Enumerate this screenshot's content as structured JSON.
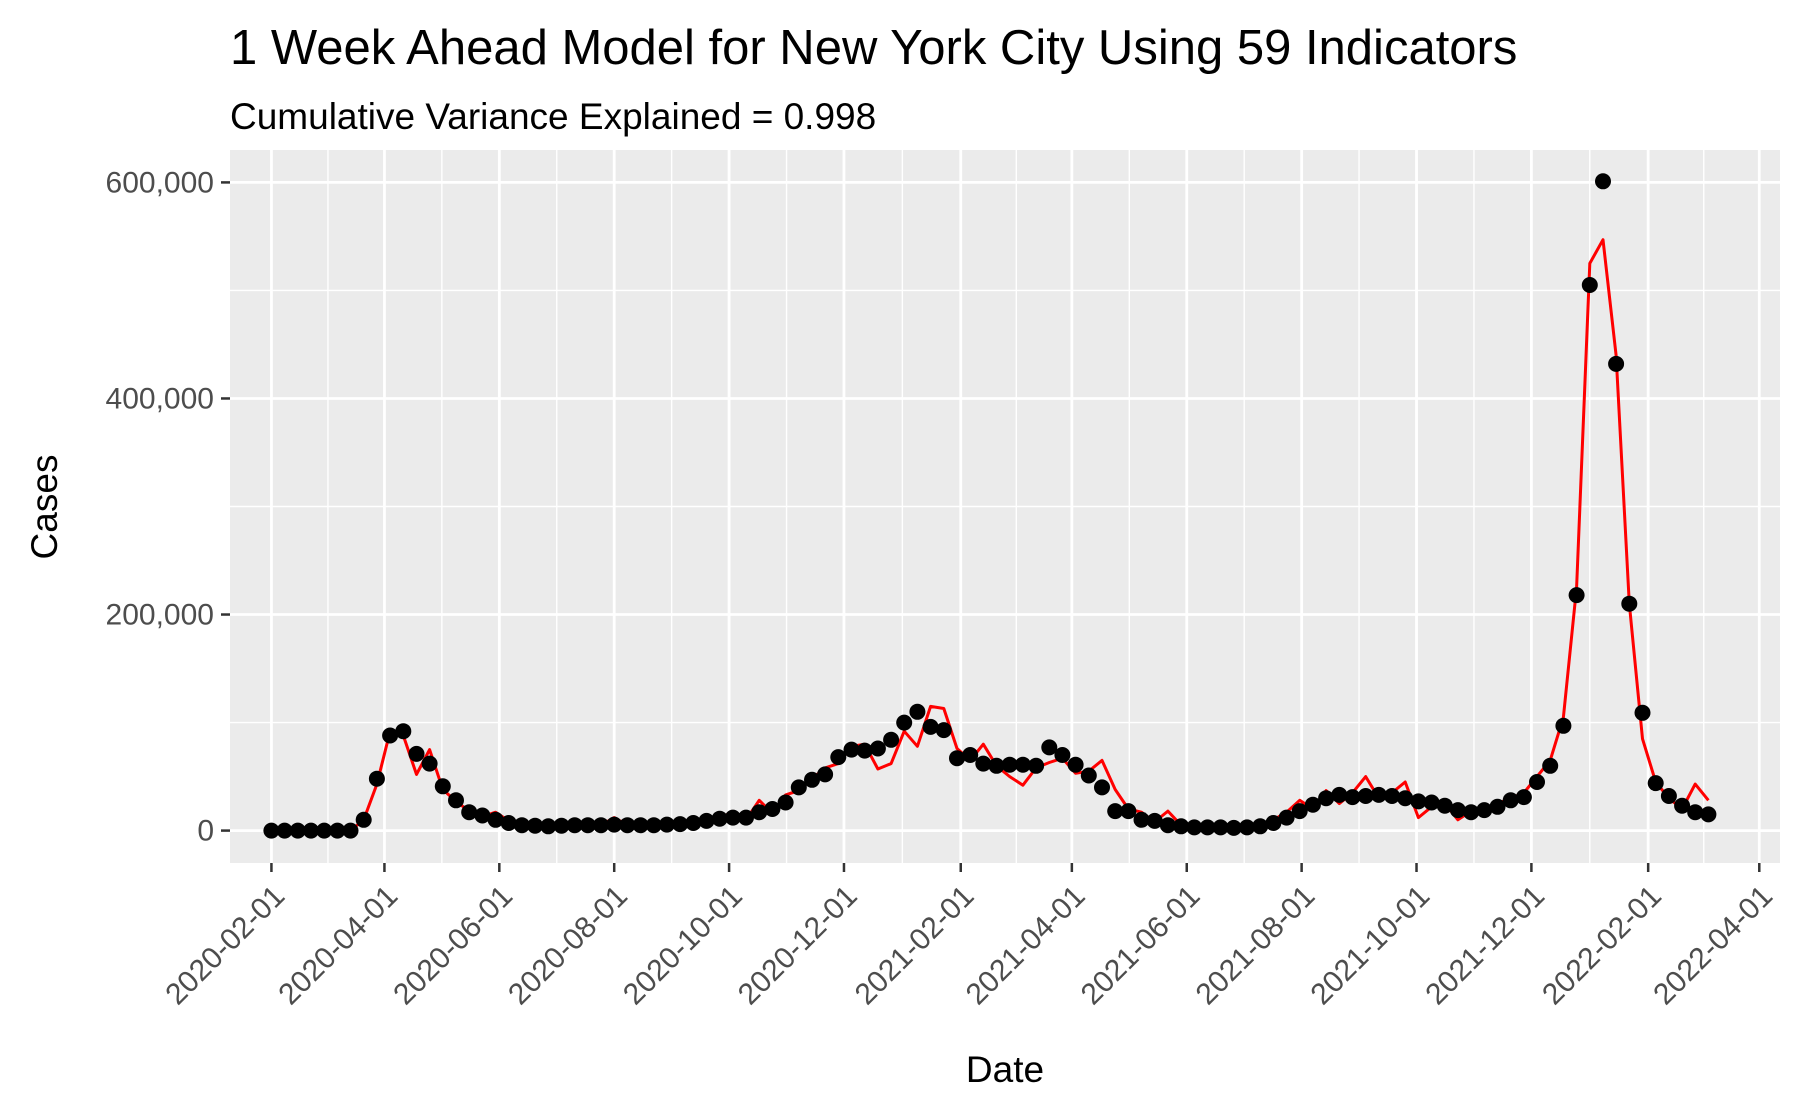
{
  "chart_data": {
    "type": "line",
    "title": "1 Week Ahead Model for New York City Using 59 Indicators",
    "subtitle": "Cumulative Variance Explained = 0.998",
    "xlabel": "Date",
    "ylabel": "Cases",
    "x_axis": {
      "type": "date",
      "range": [
        "2020-01-10",
        "2022-04-12"
      ],
      "ticks": [
        "2020-02-01",
        "2020-04-01",
        "2020-06-01",
        "2020-08-01",
        "2020-10-01",
        "2020-12-01",
        "2021-02-01",
        "2021-04-01",
        "2021-06-01",
        "2021-08-01",
        "2021-10-01",
        "2021-12-01",
        "2022-02-01",
        "2022-04-01"
      ]
    },
    "y_axis": {
      "range": [
        -30000,
        630000
      ],
      "ticks": [
        0,
        200000,
        400000,
        600000
      ],
      "tick_labels": [
        "0",
        "200,000",
        "400,000",
        "600,000"
      ]
    },
    "grid": true,
    "colors": {
      "panel": "#ebebeb",
      "grid": "#ffffff",
      "predicted": "#ff0000",
      "observed": "#000000"
    },
    "series": [
      {
        "kind": "line",
        "values": [
          [
            "2020-02-01",
            0
          ],
          [
            "2020-02-08",
            0
          ],
          [
            "2020-02-15",
            0
          ],
          [
            "2020-02-22",
            0
          ],
          [
            "2020-02-29",
            0
          ],
          [
            "2020-03-07",
            0
          ],
          [
            "2020-03-14",
            0
          ],
          [
            "2020-03-21",
            10000
          ],
          [
            "2020-03-28",
            43000
          ],
          [
            "2020-04-04",
            92000
          ],
          [
            "2020-04-11",
            88000
          ],
          [
            "2020-04-18",
            52000
          ],
          [
            "2020-04-25",
            75000
          ],
          [
            "2020-05-02",
            38000
          ],
          [
            "2020-05-09",
            27000
          ],
          [
            "2020-05-16",
            18000
          ],
          [
            "2020-05-23",
            13000
          ],
          [
            "2020-05-30",
            17000
          ],
          [
            "2020-06-06",
            9000
          ],
          [
            "2020-06-13",
            6000
          ],
          [
            "2020-06-20",
            5000
          ],
          [
            "2020-06-27",
            5000
          ],
          [
            "2020-07-04",
            5500
          ],
          [
            "2020-07-11",
            6000
          ],
          [
            "2020-07-18",
            5500
          ],
          [
            "2020-07-25",
            5000
          ],
          [
            "2020-08-01",
            12000
          ],
          [
            "2020-08-08",
            5000
          ],
          [
            "2020-08-15",
            6000
          ],
          [
            "2020-08-22",
            5000
          ],
          [
            "2020-08-29",
            6000
          ],
          [
            "2020-09-05",
            7000
          ],
          [
            "2020-09-12",
            7000
          ],
          [
            "2020-09-19",
            10000
          ],
          [
            "2020-09-26",
            12000
          ],
          [
            "2020-10-03",
            17000
          ],
          [
            "2020-10-10",
            10000
          ],
          [
            "2020-10-17",
            28000
          ],
          [
            "2020-10-24",
            16000
          ],
          [
            "2020-10-31",
            33000
          ],
          [
            "2020-11-07",
            37000
          ],
          [
            "2020-11-14",
            48000
          ],
          [
            "2020-11-21",
            58000
          ],
          [
            "2020-11-28",
            62000
          ],
          [
            "2020-12-05",
            78000
          ],
          [
            "2020-12-12",
            80000
          ],
          [
            "2020-12-19",
            57000
          ],
          [
            "2020-12-26",
            62000
          ],
          [
            "2021-01-02",
            92000
          ],
          [
            "2021-01-09",
            78000
          ],
          [
            "2021-01-16",
            115000
          ],
          [
            "2021-01-23",
            113000
          ],
          [
            "2021-01-30",
            76000
          ],
          [
            "2021-02-06",
            65000
          ],
          [
            "2021-02-13",
            80000
          ],
          [
            "2021-02-20",
            60000
          ],
          [
            "2021-02-27",
            50000
          ],
          [
            "2021-03-06",
            42000
          ],
          [
            "2021-03-13",
            58000
          ],
          [
            "2021-03-20",
            63000
          ],
          [
            "2021-03-27",
            67000
          ],
          [
            "2021-04-03",
            53000
          ],
          [
            "2021-04-10",
            55000
          ],
          [
            "2021-04-17",
            65000
          ],
          [
            "2021-04-24",
            38000
          ],
          [
            "2021-05-01",
            20000
          ],
          [
            "2021-05-08",
            17000
          ],
          [
            "2021-05-15",
            8000
          ],
          [
            "2021-05-22",
            18000
          ],
          [
            "2021-05-29",
            5000
          ],
          [
            "2021-06-05",
            3000
          ],
          [
            "2021-06-12",
            2000
          ],
          [
            "2021-06-19",
            4000
          ],
          [
            "2021-06-26",
            3000
          ],
          [
            "2021-07-03",
            2000
          ],
          [
            "2021-07-10",
            4000
          ],
          [
            "2021-07-17",
            10000
          ],
          [
            "2021-07-24",
            17000
          ],
          [
            "2021-07-31",
            28000
          ],
          [
            "2021-08-07",
            20000
          ],
          [
            "2021-08-14",
            37000
          ],
          [
            "2021-08-21",
            25000
          ],
          [
            "2021-08-28",
            35000
          ],
          [
            "2021-09-04",
            50000
          ],
          [
            "2021-09-11",
            30000
          ],
          [
            "2021-09-18",
            35000
          ],
          [
            "2021-09-25",
            45000
          ],
          [
            "2021-10-02",
            12000
          ],
          [
            "2021-10-09",
            22000
          ],
          [
            "2021-10-16",
            25000
          ],
          [
            "2021-10-23",
            10000
          ],
          [
            "2021-10-30",
            18000
          ],
          [
            "2021-11-06",
            20000
          ],
          [
            "2021-11-13",
            25000
          ],
          [
            "2021-11-20",
            30000
          ],
          [
            "2021-11-27",
            35000
          ],
          [
            "2021-12-04",
            50000
          ],
          [
            "2021-12-11",
            65000
          ],
          [
            "2021-12-18",
            105000
          ],
          [
            "2021-12-25",
            225000
          ],
          [
            "2022-01-01",
            525000
          ],
          [
            "2022-01-08",
            547000
          ],
          [
            "2022-01-15",
            440000
          ],
          [
            "2022-01-22",
            210000
          ],
          [
            "2022-01-29",
            85000
          ],
          [
            "2022-02-05",
            45000
          ],
          [
            "2022-02-12",
            30000
          ],
          [
            "2022-02-19",
            20000
          ],
          [
            "2022-02-26",
            43000
          ],
          [
            "2022-03-05",
            28000
          ]
        ]
      },
      {
        "kind": "points",
        "values": [
          [
            "2020-02-01",
            0
          ],
          [
            "2020-02-08",
            0
          ],
          [
            "2020-02-15",
            0
          ],
          [
            "2020-02-22",
            0
          ],
          [
            "2020-02-29",
            0
          ],
          [
            "2020-03-07",
            0
          ],
          [
            "2020-03-14",
            0
          ],
          [
            "2020-03-21",
            10000
          ],
          [
            "2020-03-28",
            48000
          ],
          [
            "2020-04-04",
            88000
          ],
          [
            "2020-04-11",
            92000
          ],
          [
            "2020-04-18",
            71000
          ],
          [
            "2020-04-25",
            62000
          ],
          [
            "2020-05-02",
            41000
          ],
          [
            "2020-05-09",
            28000
          ],
          [
            "2020-05-16",
            17000
          ],
          [
            "2020-05-23",
            14000
          ],
          [
            "2020-05-30",
            10000
          ],
          [
            "2020-06-06",
            7000
          ],
          [
            "2020-06-13",
            5000
          ],
          [
            "2020-06-20",
            4500
          ],
          [
            "2020-06-27",
            4000
          ],
          [
            "2020-07-04",
            4500
          ],
          [
            "2020-07-11",
            5000
          ],
          [
            "2020-07-18",
            5000
          ],
          [
            "2020-07-25",
            5000
          ],
          [
            "2020-08-01",
            5500
          ],
          [
            "2020-08-08",
            5000
          ],
          [
            "2020-08-15",
            5000
          ],
          [
            "2020-08-22",
            5000
          ],
          [
            "2020-08-29",
            5500
          ],
          [
            "2020-09-05",
            6000
          ],
          [
            "2020-09-12",
            7000
          ],
          [
            "2020-09-19",
            9000
          ],
          [
            "2020-09-26",
            11000
          ],
          [
            "2020-10-03",
            12000
          ],
          [
            "2020-10-10",
            12000
          ],
          [
            "2020-10-17",
            17000
          ],
          [
            "2020-10-24",
            20000
          ],
          [
            "2020-10-31",
            26000
          ],
          [
            "2020-11-07",
            40000
          ],
          [
            "2020-11-14",
            47000
          ],
          [
            "2020-11-21",
            52000
          ],
          [
            "2020-11-28",
            68000
          ],
          [
            "2020-12-05",
            75000
          ],
          [
            "2020-12-12",
            74000
          ],
          [
            "2020-12-19",
            76000
          ],
          [
            "2020-12-26",
            84000
          ],
          [
            "2021-01-02",
            100000
          ],
          [
            "2021-01-09",
            110000
          ],
          [
            "2021-01-16",
            96000
          ],
          [
            "2021-01-23",
            93000
          ],
          [
            "2021-01-30",
            67000
          ],
          [
            "2021-02-06",
            70000
          ],
          [
            "2021-02-13",
            62000
          ],
          [
            "2021-02-20",
            60000
          ],
          [
            "2021-02-27",
            61000
          ],
          [
            "2021-03-06",
            61000
          ],
          [
            "2021-03-13",
            60000
          ],
          [
            "2021-03-20",
            77000
          ],
          [
            "2021-03-27",
            70000
          ],
          [
            "2021-04-03",
            61000
          ],
          [
            "2021-04-10",
            51000
          ],
          [
            "2021-04-17",
            40000
          ],
          [
            "2021-04-24",
            18000
          ],
          [
            "2021-05-01",
            18000
          ],
          [
            "2021-05-08",
            10000
          ],
          [
            "2021-05-15",
            9000
          ],
          [
            "2021-05-22",
            5000
          ],
          [
            "2021-05-29",
            4000
          ],
          [
            "2021-06-05",
            3000
          ],
          [
            "2021-06-12",
            3000
          ],
          [
            "2021-06-19",
            3000
          ],
          [
            "2021-06-26",
            2500
          ],
          [
            "2021-07-03",
            3000
          ],
          [
            "2021-07-10",
            4000
          ],
          [
            "2021-07-17",
            7000
          ],
          [
            "2021-07-24",
            12000
          ],
          [
            "2021-07-31",
            18000
          ],
          [
            "2021-08-07",
            24000
          ],
          [
            "2021-08-14",
            30000
          ],
          [
            "2021-08-21",
            33000
          ],
          [
            "2021-08-28",
            31000
          ],
          [
            "2021-09-04",
            32000
          ],
          [
            "2021-09-11",
            33000
          ],
          [
            "2021-09-18",
            32000
          ],
          [
            "2021-09-25",
            30000
          ],
          [
            "2021-10-02",
            27000
          ],
          [
            "2021-10-09",
            26000
          ],
          [
            "2021-10-16",
            23000
          ],
          [
            "2021-10-23",
            19000
          ],
          [
            "2021-10-30",
            17000
          ],
          [
            "2021-11-06",
            19000
          ],
          [
            "2021-11-13",
            22000
          ],
          [
            "2021-11-20",
            28000
          ],
          [
            "2021-11-27",
            31000
          ],
          [
            "2021-12-04",
            45000
          ],
          [
            "2021-12-11",
            60000
          ],
          [
            "2021-12-18",
            97000
          ],
          [
            "2021-12-25",
            218000
          ],
          [
            "2022-01-01",
            505000
          ],
          [
            "2022-01-08",
            601000
          ],
          [
            "2022-01-15",
            432000
          ],
          [
            "2022-01-22",
            210000
          ],
          [
            "2022-01-29",
            109000
          ],
          [
            "2022-02-05",
            44000
          ],
          [
            "2022-02-12",
            32000
          ],
          [
            "2022-02-19",
            23000
          ],
          [
            "2022-02-26",
            17000
          ],
          [
            "2022-03-05",
            15000
          ]
        ]
      }
    ]
  }
}
